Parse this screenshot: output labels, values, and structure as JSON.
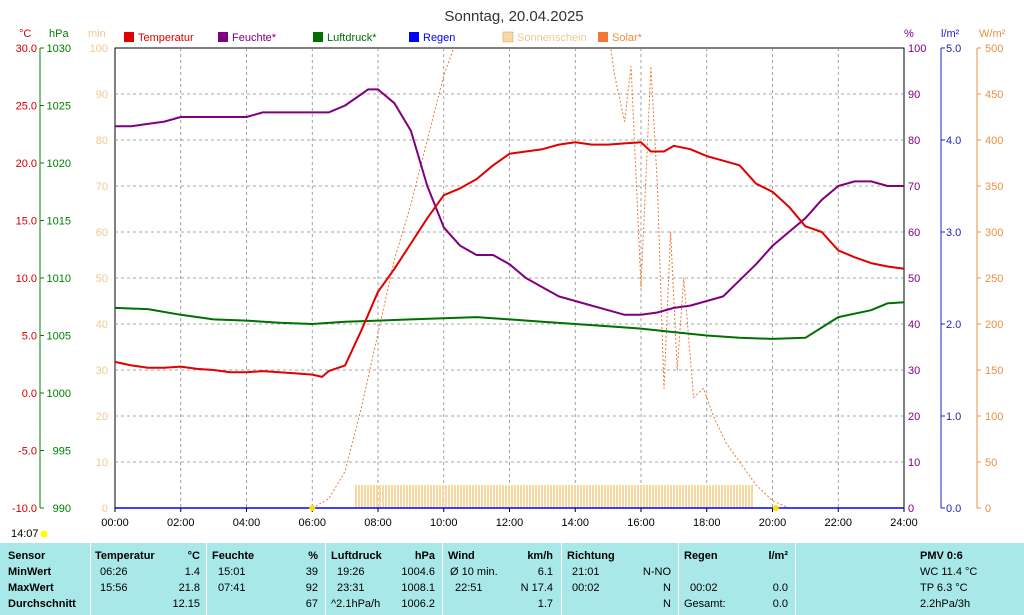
{
  "title": "Sonntag, 20.04.2025",
  "current_time": "14:07",
  "units": {
    "temp": "°C",
    "press": "hPa",
    "min": "min",
    "hum": "%",
    "rain": "l/m²",
    "solar": "W/m²"
  },
  "colors": {
    "temp": "#e00000",
    "hum": "#800080",
    "press": "#007000",
    "rain": "#0000ff",
    "sunshine": "#f8d8a0",
    "solar": "#f07830",
    "axis_rain": "#2020c0",
    "axis_solar": "#e89040",
    "axis_min": "#f0c890",
    "axis_temp": "#d00000",
    "axis_hum": "#800080",
    "axis_press": "#008000",
    "table_bg": "#a9e8e8"
  },
  "legend": [
    {
      "label": "Temperatur",
      "color": "#e00000",
      "key": "temp"
    },
    {
      "label": "Feuchte*",
      "color": "#800080",
      "key": "hum"
    },
    {
      "label": "Luftdruck*",
      "color": "#007000",
      "key": "press"
    },
    {
      "label": "Regen",
      "color": "#0000ff",
      "key": "rain"
    },
    {
      "label": "Sonnenschein",
      "color": "#f8d8a0",
      "key": "sunshine"
    },
    {
      "label": "Solar*",
      "color": "#f07830",
      "key": "solar"
    }
  ],
  "chart_data": {
    "type": "line",
    "title": "Sonntag, 20.04.2025",
    "x_ticks": [
      "00:00",
      "02:00",
      "04:00",
      "06:00",
      "08:00",
      "10:00",
      "12:00",
      "14:00",
      "16:00",
      "18:00",
      "20:00",
      "22:00",
      "24:00"
    ],
    "x_range_hours": [
      0,
      24
    ],
    "axes": {
      "temp": {
        "unit": "°C",
        "range": [
          -10,
          30
        ],
        "ticks": [
          "30.0",
          "25.0",
          "20.0",
          "15.0",
          "10.0",
          "5.0",
          "0.0",
          "-5.0",
          "-10.0"
        ]
      },
      "press": {
        "unit": "hPa",
        "range": [
          990,
          1030
        ],
        "ticks": [
          "1030",
          "1025",
          "1020",
          "1015",
          "1010",
          "1005",
          "1000",
          "995",
          "990"
        ]
      },
      "sunshine": {
        "unit": "min",
        "range": [
          0,
          100
        ],
        "ticks": [
          "100",
          "90",
          "80",
          "70",
          "60",
          "50",
          "40",
          "30",
          "20",
          "10",
          "0"
        ]
      },
      "hum": {
        "unit": "%",
        "range": [
          0,
          100
        ],
        "ticks": [
          "100",
          "90",
          "80",
          "70",
          "60",
          "50",
          "40",
          "30",
          "20",
          "10",
          "0"
        ]
      },
      "rain": {
        "unit": "l/m²",
        "range": [
          0,
          5
        ],
        "ticks": [
          "5.0",
          "4.0",
          "3.0",
          "2.0",
          "1.0",
          "0.0"
        ],
        "tick_values": [
          5,
          4,
          3,
          2,
          1,
          0
        ]
      },
      "solar": {
        "unit": "W/m²",
        "range": [
          0,
          500
        ],
        "ticks": [
          "500",
          "450",
          "400",
          "350",
          "300",
          "250",
          "200",
          "150",
          "100",
          "50",
          "0"
        ]
      }
    },
    "grid": true,
    "series": [
      {
        "name": "Temperatur",
        "axis": "temp",
        "x": [
          0,
          0.5,
          1,
          1.5,
          2,
          2.5,
          3,
          3.5,
          4,
          4.5,
          5,
          5.5,
          6,
          6.3,
          6.5,
          7,
          7.5,
          8,
          8.5,
          9,
          9.5,
          10,
          10.5,
          11,
          11.5,
          12,
          12.5,
          13,
          13.5,
          14,
          14.5,
          15,
          15.5,
          16,
          16.3,
          16.7,
          17,
          17.5,
          18,
          18.5,
          19,
          19.5,
          20,
          20.5,
          21,
          21.5,
          22,
          22.5,
          23,
          23.5,
          24
        ],
        "y": [
          2.7,
          2.4,
          2.2,
          2.2,
          2.3,
          2.1,
          2.0,
          1.8,
          1.8,
          1.9,
          1.8,
          1.7,
          1.6,
          1.4,
          1.9,
          2.4,
          5.5,
          8.8,
          10.8,
          13.0,
          15.2,
          17.2,
          17.8,
          18.6,
          19.8,
          20.8,
          21.0,
          21.2,
          21.6,
          21.8,
          21.6,
          21.6,
          21.7,
          21.8,
          21.0,
          21.0,
          21.5,
          21.2,
          20.6,
          20.2,
          19.8,
          18.2,
          17.5,
          16.2,
          14.5,
          14.0,
          12.4,
          11.8,
          11.3,
          11.0,
          10.8
        ]
      },
      {
        "name": "Feuchte*",
        "axis": "hum",
        "x": [
          0,
          0.5,
          1,
          1.5,
          2,
          2.5,
          3,
          3.5,
          4,
          4.5,
          5,
          5.5,
          6,
          6.5,
          7,
          7.5,
          7.7,
          8,
          8.5,
          9,
          9.5,
          10,
          10.5,
          11,
          11.5,
          12,
          12.5,
          13,
          13.5,
          14,
          14.5,
          15,
          15.5,
          16,
          16.5,
          17,
          17.5,
          18,
          18.5,
          19,
          19.5,
          20,
          20.5,
          21,
          21.5,
          22,
          22.5,
          23,
          23.5,
          24
        ],
        "y": [
          83,
          83,
          83.5,
          84,
          85,
          85,
          85,
          85,
          85,
          86,
          86,
          86,
          86,
          86,
          87.5,
          90,
          91,
          91,
          88,
          82,
          70,
          61,
          57,
          55,
          55,
          53,
          50,
          48,
          46,
          45,
          44,
          43,
          42,
          42,
          42.5,
          43.5,
          44,
          45,
          46,
          49.5,
          53,
          57,
          60,
          63,
          67,
          70,
          71,
          71,
          70,
          70
        ]
      },
      {
        "name": "Luftdruck*",
        "axis": "press",
        "x": [
          0,
          1,
          2,
          3,
          4,
          5,
          6,
          7,
          8,
          9,
          10,
          11,
          12,
          13,
          14,
          15,
          16,
          17,
          18,
          19,
          20,
          21,
          22,
          23,
          23.5,
          24
        ],
        "y": [
          1007.4,
          1007.3,
          1006.8,
          1006.4,
          1006.3,
          1006.1,
          1006.0,
          1006.2,
          1006.3,
          1006.4,
          1006.5,
          1006.6,
          1006.4,
          1006.2,
          1006.0,
          1005.8,
          1005.6,
          1005.3,
          1005.0,
          1004.8,
          1004.7,
          1004.8,
          1006.6,
          1007.2,
          1007.8,
          1007.9
        ]
      },
      {
        "name": "Solar*",
        "axis": "solar",
        "x": [
          6,
          6.5,
          7,
          7.5,
          8,
          8.5,
          9,
          9.5,
          10,
          10.5,
          11,
          11.5,
          12,
          12.5,
          13,
          13.5,
          14,
          14.5,
          15,
          15.2,
          15.5,
          15.7,
          16,
          16.3,
          16.5,
          16.7,
          16.9,
          17.1,
          17.3,
          17.6,
          17.9,
          18.2,
          18.6,
          19,
          19.5,
          20,
          20.5
        ],
        "y": [
          0,
          10,
          40,
          110,
          190,
          270,
          330,
          400,
          470,
          520,
          570,
          620,
          660,
          690,
          710,
          720,
          740,
          760,
          520,
          470,
          420,
          480,
          240,
          480,
          350,
          130,
          300,
          150,
          250,
          120,
          130,
          100,
          70,
          50,
          25,
          8,
          0
        ]
      },
      {
        "name": "Sonnenschein",
        "axis": "sunshine",
        "bars": {
          "x_start": 7.3,
          "x_end": 19.35,
          "value": 5
        }
      },
      {
        "name": "Regen",
        "axis": "rain",
        "x": [
          0,
          24
        ],
        "y": [
          0,
          0
        ]
      }
    ]
  },
  "table": {
    "headers": {
      "sensor": "Sensor",
      "temperatur": "Temperatur",
      "temperatur_unit": "°C",
      "feuchte": "Feuchte",
      "feuchte_unit": "%",
      "luftdruck": "Luftdruck",
      "luftdruck_unit": "hPa",
      "wind": "Wind",
      "wind_unit": "km/h",
      "richtung": "Richtung",
      "regen": "Regen",
      "regen_unit": "l/m²",
      "pmv": "PMV 0:6"
    },
    "rows": [
      {
        "label": "MinWert",
        "temp_time": "06:26",
        "temp_val": "1.4",
        "hum_time": "15:01",
        "hum_val": "39",
        "press_time": "19:26",
        "press_val": "1004.6",
        "wind_time": "Ø 10 min.",
        "wind_val": "6.1",
        "dir_time": "21:01",
        "dir_val": "N-NO",
        "rain_time": "",
        "rain_val": "",
        "extra": "WC 11.4 °C"
      },
      {
        "label": "MaxWert",
        "temp_time": "15:56",
        "temp_val": "21.8",
        "hum_time": "07:41",
        "hum_val": "92",
        "press_time": "23:31",
        "press_val": "1008.1",
        "wind_time": "22:51",
        "wind_val": "N 17.4",
        "dir_time": "00:02",
        "dir_val": "N",
        "rain_time": "00:02",
        "rain_val": "0.0",
        "extra": "TP 6.3 °C"
      },
      {
        "label": "Durchschnitt",
        "temp_time": "",
        "temp_val": "12.15",
        "hum_time": "",
        "hum_val": "67",
        "press_time": "^2.1hPa/h",
        "press_val": "1006.2",
        "wind_time": "",
        "wind_val": "1.7",
        "dir_time": "",
        "dir_val": "N",
        "rain_time": "Gesamt:",
        "rain_val": "0.0",
        "extra": "2.2hPa/3h"
      }
    ]
  }
}
